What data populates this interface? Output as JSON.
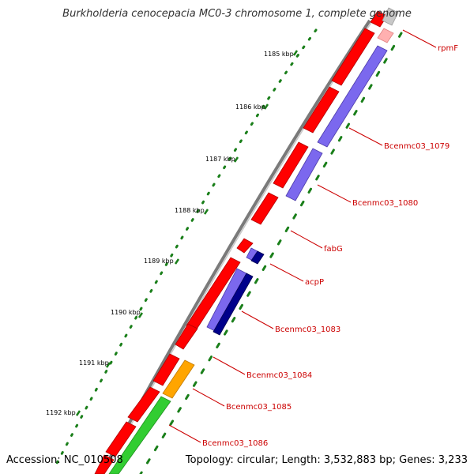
{
  "title": "Burkholderia cenocepacia MC0-3 chromosome 1, complete genome",
  "accession": "Accession: NC_010508",
  "summary": "Topology: circular; Length: 3,532,883 bp; Genes: 3,233",
  "colors": {
    "backbone": "#808080",
    "forward_gene": "#ff0000",
    "reverse_light": "#7b68ee",
    "reverse_dark": "#00008b",
    "orange_gene": "#ffa500",
    "green_gene": "#32cd32",
    "tick": "#006400",
    "label": "#cc0000",
    "leader": "#cc0000"
  },
  "ticks": [
    {
      "label": "1185 kbp"
    },
    {
      "label": "1186 kbp"
    },
    {
      "label": "1187 kbp"
    },
    {
      "label": "1188 kbp"
    },
    {
      "label": "1189 kbp"
    },
    {
      "label": "1190 kbp"
    },
    {
      "label": "1191 kbp"
    },
    {
      "label": "1192 kbp"
    }
  ],
  "gene_labels": [
    {
      "text": "rpmF"
    },
    {
      "text": "Bcenmc03_1079"
    },
    {
      "text": "Bcenmc03_1080"
    },
    {
      "text": "fabG"
    },
    {
      "text": "acpP"
    },
    {
      "text": "Bcenmc03_1083"
    },
    {
      "text": "Bcenmc03_1084"
    },
    {
      "text": "Bcenmc03_1085"
    },
    {
      "text": "Bcenmc03_1086"
    }
  ]
}
